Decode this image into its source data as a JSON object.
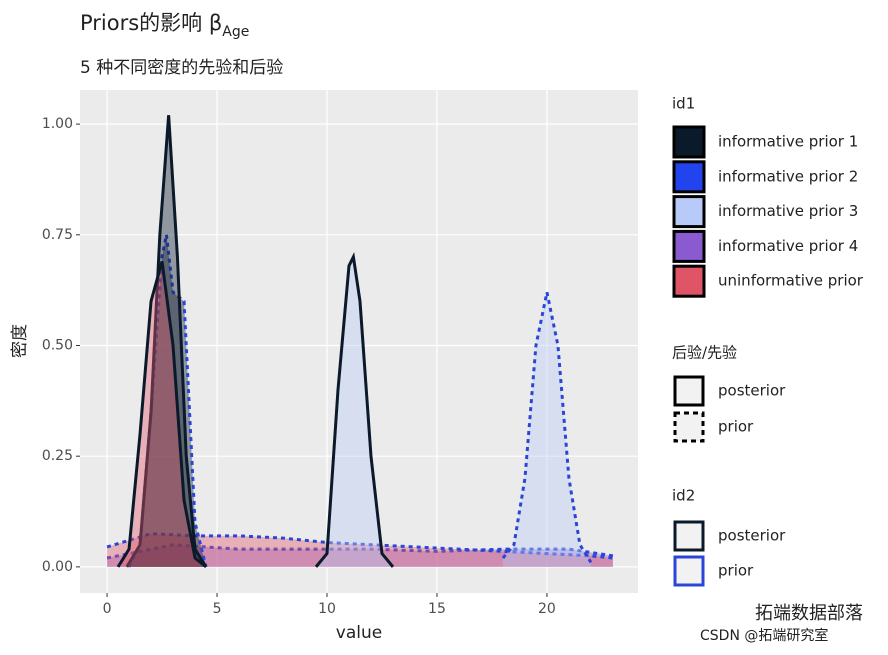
{
  "chart_data": {
    "type": "density",
    "title": "Priors的影响 β",
    "title_subscript": "Age",
    "subtitle": "5 种不同密度的先验和后验",
    "xlabel": "value",
    "ylabel": "密度",
    "xlim": [
      -1.23,
      24.14
    ],
    "ylim": [
      -0.059,
      1.077
    ],
    "xticks": [
      0,
      5,
      10,
      15,
      20
    ],
    "yticks": [
      {
        "value": 0,
        "label": "0.00"
      },
      {
        "value": 0.25,
        "label": "0.25"
      },
      {
        "value": 0.5,
        "label": "0.50"
      },
      {
        "value": 0.75,
        "label": "0.75"
      },
      {
        "value": 1,
        "label": "1.00"
      }
    ],
    "grid": true,
    "series": [
      {
        "name": "informative prior 4",
        "color": "#8a5ad0",
        "stroke": "#2a46d8",
        "dashed": true,
        "x": [
          0,
          3,
          6,
          9,
          12,
          15,
          18,
          21,
          23
        ],
        "values": [
          0.02,
          0.05,
          0.04,
          0.04,
          0.04,
          0.035,
          0.04,
          0.04,
          0.025
        ]
      },
      {
        "name": "uninformative prior",
        "color": "#e05468",
        "stroke": "#2a46d8",
        "dashed": true,
        "x": [
          0,
          2,
          4,
          6,
          8,
          10,
          12,
          14,
          16,
          18,
          20,
          22,
          23
        ],
        "values": [
          0.045,
          0.075,
          0.07,
          0.07,
          0.065,
          0.055,
          0.05,
          0.045,
          0.04,
          0.035,
          0.03,
          0.025,
          0.02
        ]
      },
      {
        "name": "informative prior 3",
        "color": "#b8caf8",
        "stroke": "#2a46d8",
        "dashed": true,
        "x": [
          18,
          18.5,
          19,
          19.5,
          20,
          20.5,
          21,
          21.5,
          22
        ],
        "values": [
          0.02,
          0.05,
          0.2,
          0.5,
          0.62,
          0.5,
          0.2,
          0.05,
          0.01
        ]
      },
      {
        "name": "informative prior 1",
        "color": "#0b1a2b",
        "stroke": "#2a46d8",
        "dashed": true,
        "x": [
          1,
          1.5,
          2,
          2.5,
          2.7,
          3,
          3.5,
          4,
          4.5
        ],
        "values": [
          0,
          0.05,
          0.35,
          0.7,
          0.75,
          0.62,
          0.6,
          0.1,
          0
        ]
      },
      {
        "name": "informative prior 3",
        "color": "#b8caf8",
        "stroke": "#0b1a2b",
        "dashed": false,
        "x": [
          9.5,
          10,
          10.5,
          11,
          11.2,
          11.5,
          12,
          12.5,
          13
        ],
        "values": [
          0,
          0.03,
          0.4,
          0.68,
          0.7,
          0.6,
          0.25,
          0.03,
          0
        ]
      },
      {
        "name": "informative prior 1",
        "color": "#0b1a2b",
        "stroke": "#0b1a2b",
        "dashed": false,
        "x": [
          0.9,
          1.5,
          2,
          2.4,
          2.8,
          3.2,
          3.6,
          4,
          4.5
        ],
        "values": [
          0,
          0.05,
          0.35,
          0.75,
          1.02,
          0.7,
          0.25,
          0.04,
          0
        ]
      },
      {
        "name": "uninformative prior",
        "color": "#e05468",
        "stroke": "#0b1a2b",
        "dashed": false,
        "x": [
          0.5,
          1,
          1.5,
          2,
          2.5,
          3,
          3.5,
          4,
          4.5
        ],
        "values": [
          0,
          0.04,
          0.3,
          0.6,
          0.69,
          0.5,
          0.15,
          0.02,
          0
        ]
      }
    ],
    "legend_id1": {
      "title": "id1",
      "entries": [
        {
          "label": "informative prior 1",
          "color": "#0b1a2b"
        },
        {
          "label": "informative prior 2",
          "color": "#2244ee"
        },
        {
          "label": "informative prior 3",
          "color": "#b8caf8"
        },
        {
          "label": "informative prior 4",
          "color": "#8a5ad0"
        },
        {
          "label": "uninformative prior",
          "color": "#e05468"
        }
      ]
    },
    "legend_linetype": {
      "title": "后验/先验",
      "entries": [
        {
          "label": "posterior",
          "dashed": false
        },
        {
          "label": "prior",
          "dashed": true
        }
      ]
    },
    "legend_id2": {
      "title": "id2",
      "entries": [
        {
          "label": "posterior",
          "color": "#0b1a2b"
        },
        {
          "label": "prior",
          "color": "#2a46d8"
        }
      ]
    },
    "watermark": "拓端数据部落",
    "watermark2": "CSDN @拓端研究室"
  }
}
